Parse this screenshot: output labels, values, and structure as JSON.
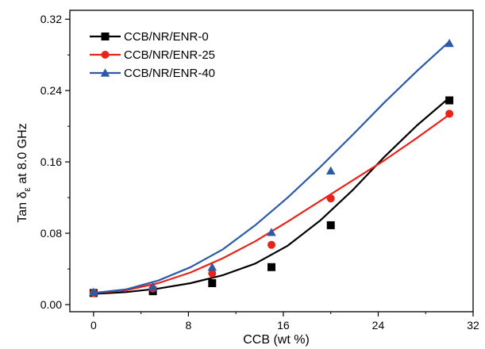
{
  "chart_data": {
    "type": "line",
    "title": "",
    "xlabel": "CCB (wt %)",
    "ylabel": {
      "main": "Tan δ",
      "subscript": "ε",
      "suffix": " at 8.0 GHz"
    },
    "xlim": [
      -2,
      32
    ],
    "ylim": [
      -0.008,
      0.33
    ],
    "x_ticks": [
      0,
      8,
      16,
      24,
      32
    ],
    "x_tick_labels": [
      "0",
      "8",
      "16",
      "24",
      "32"
    ],
    "y_ticks": [
      0.0,
      0.08,
      0.16,
      0.24,
      0.32
    ],
    "y_tick_labels": [
      "0.00",
      "0.08",
      "0.16",
      "0.24",
      "0.32"
    ],
    "legend_position": "top-left",
    "series": [
      {
        "name": "CCB/NR/ENR-0",
        "color": "#000000",
        "marker": "square",
        "x": [
          0,
          5,
          10,
          15,
          20,
          30
        ],
        "y": [
          0.013,
          0.015,
          0.024,
          0.042,
          0.089,
          0.229
        ],
        "fit": [
          0.012,
          0.014,
          0.018,
          0.024,
          0.033,
          0.046,
          0.066,
          0.094,
          0.128,
          0.166,
          0.201,
          0.232
        ]
      },
      {
        "name": "CCB/NR/ENR-25",
        "color": "#e8231a",
        "marker": "circle",
        "x": [
          0,
          5,
          10,
          15,
          20,
          30
        ],
        "y": [
          0.013,
          0.018,
          0.035,
          0.067,
          0.119,
          0.214
        ],
        "fit": [
          0.013,
          0.016,
          0.024,
          0.036,
          0.052,
          0.071,
          0.093,
          0.116,
          0.139,
          0.162,
          0.187,
          0.213
        ]
      },
      {
        "name": "CCB/NR/ENR-40",
        "color": "#2a5aa8",
        "marker": "triangle",
        "x": [
          0,
          5,
          10,
          15,
          20,
          30
        ],
        "y": [
          0.014,
          0.02,
          0.042,
          0.081,
          0.15,
          0.293
        ],
        "fit": [
          0.013,
          0.017,
          0.027,
          0.042,
          0.062,
          0.089,
          0.12,
          0.154,
          0.19,
          0.227,
          0.262,
          0.295
        ]
      }
    ]
  }
}
